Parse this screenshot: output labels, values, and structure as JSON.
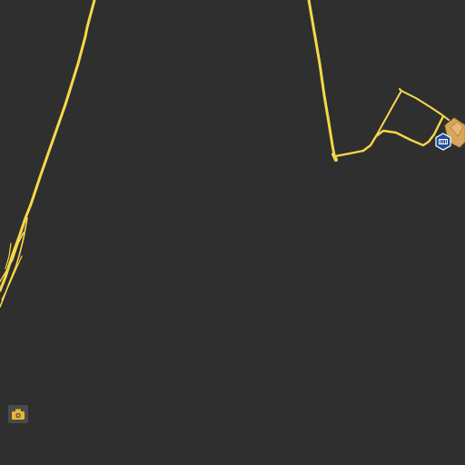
{
  "map": {
    "background_color": "#2f2f2f",
    "road_color": "#f5d84a",
    "road_casing_color": "#e6c23a",
    "building_color": "#d9a45c",
    "building_outline_color": "#b9843c",
    "poi_shield_color": "#1e4d9b"
  },
  "pois": [
    {
      "name": "shield",
      "icon": "shield-icon"
    },
    {
      "name": "camera",
      "icon": "camera-icon"
    }
  ]
}
